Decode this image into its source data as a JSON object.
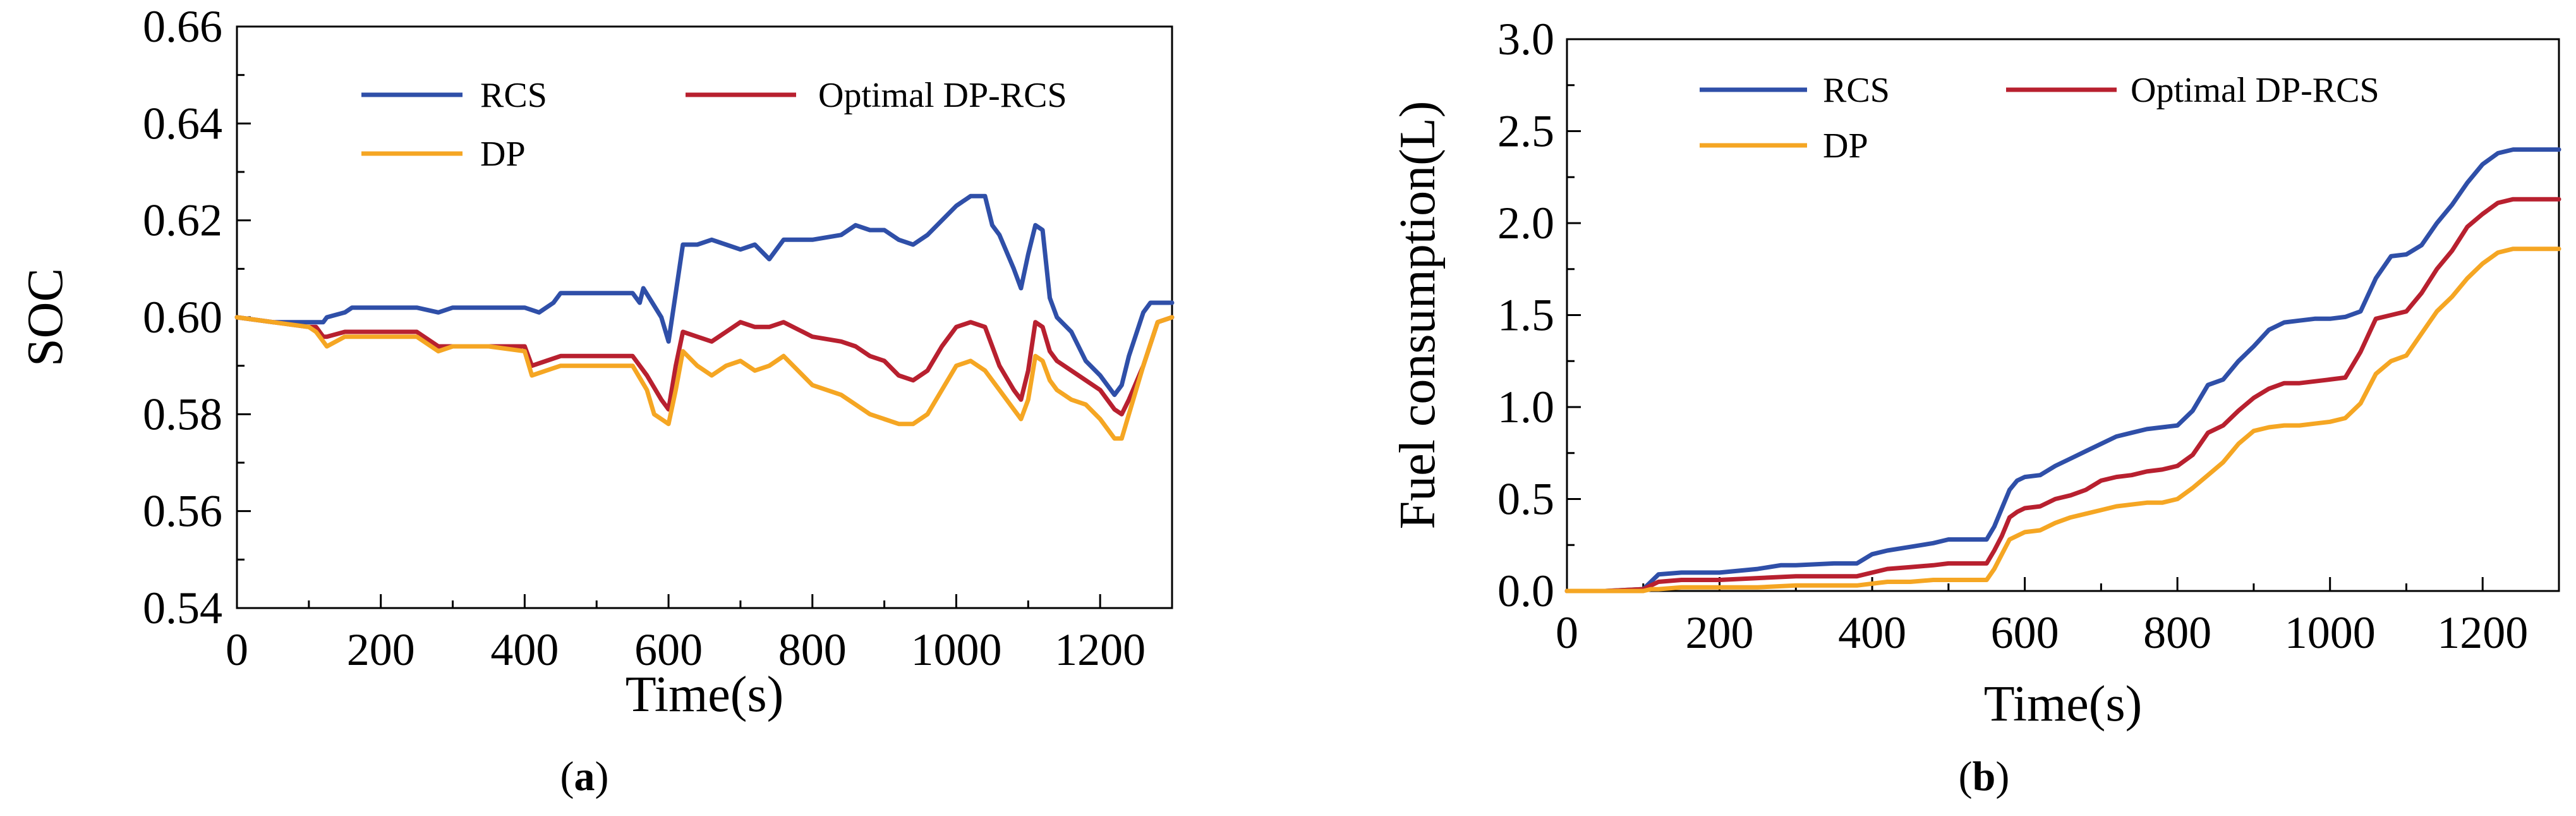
{
  "chart_data": [
    {
      "type": "line",
      "panel": "a",
      "xlabel": "Time(s)",
      "ylabel": "SOC",
      "xlim": [
        0,
        1300
      ],
      "ylim": [
        0.54,
        0.66
      ],
      "xticks": [
        0,
        200,
        400,
        600,
        800,
        1000,
        1200
      ],
      "xtick_labels": [
        "0",
        "200",
        "400",
        "600",
        "800",
        "1000",
        "1200"
      ],
      "yticks": [
        0.54,
        0.56,
        0.58,
        0.6,
        0.62,
        0.64,
        0.66
      ],
      "ytick_labels": [
        "0.54",
        "0.56",
        "0.58",
        "0.60",
        "0.62",
        "0.64",
        "0.66"
      ],
      "grid": false,
      "legend_position": "top",
      "series": [
        {
          "name": "RCS",
          "color": "#2f4fa8",
          "x": [
            0,
            50,
            100,
            120,
            125,
            150,
            160,
            200,
            250,
            280,
            300,
            350,
            400,
            420,
            440,
            450,
            500,
            550,
            560,
            565,
            590,
            600,
            610,
            620,
            640,
            660,
            680,
            700,
            720,
            740,
            760,
            800,
            840,
            860,
            880,
            900,
            920,
            940,
            960,
            980,
            1000,
            1020,
            1040,
            1050,
            1060,
            1080,
            1090,
            1100,
            1110,
            1120,
            1130,
            1140,
            1160,
            1180,
            1200,
            1220,
            1230,
            1240,
            1260,
            1270,
            1280,
            1300
          ],
          "y": [
            0.6,
            0.599,
            0.599,
            0.599,
            0.6,
            0.601,
            0.602,
            0.602,
            0.602,
            0.601,
            0.602,
            0.602,
            0.602,
            0.601,
            0.603,
            0.605,
            0.605,
            0.605,
            0.603,
            0.606,
            0.6,
            0.595,
            0.605,
            0.615,
            0.615,
            0.616,
            0.615,
            0.614,
            0.615,
            0.612,
            0.616,
            0.616,
            0.617,
            0.619,
            0.618,
            0.618,
            0.616,
            0.615,
            0.617,
            0.62,
            0.623,
            0.625,
            0.625,
            0.619,
            0.617,
            0.61,
            0.606,
            0.613,
            0.619,
            0.618,
            0.604,
            0.6,
            0.597,
            0.591,
            0.588,
            0.584,
            0.586,
            0.592,
            0.601,
            0.603,
            0.603,
            0.603
          ]
        },
        {
          "name": "Optimal DP-RCS",
          "color": "#b8202f",
          "x": [
            0,
            50,
            100,
            110,
            120,
            125,
            150,
            200,
            250,
            280,
            300,
            350,
            400,
            410,
            430,
            450,
            500,
            550,
            570,
            590,
            600,
            610,
            620,
            640,
            660,
            680,
            700,
            720,
            740,
            760,
            800,
            840,
            860,
            880,
            900,
            920,
            940,
            960,
            980,
            1000,
            1020,
            1040,
            1050,
            1060,
            1080,
            1090,
            1100,
            1110,
            1120,
            1130,
            1140,
            1160,
            1180,
            1200,
            1220,
            1230,
            1240,
            1260,
            1280,
            1300
          ],
          "y": [
            0.6,
            0.599,
            0.598,
            0.598,
            0.596,
            0.596,
            0.597,
            0.597,
            0.597,
            0.594,
            0.594,
            0.594,
            0.594,
            0.59,
            0.591,
            0.592,
            0.592,
            0.592,
            0.588,
            0.583,
            0.581,
            0.59,
            0.597,
            0.596,
            0.595,
            0.597,
            0.599,
            0.598,
            0.598,
            0.599,
            0.596,
            0.595,
            0.594,
            0.592,
            0.591,
            0.588,
            0.587,
            0.589,
            0.594,
            0.598,
            0.599,
            0.598,
            0.594,
            0.59,
            0.585,
            0.583,
            0.589,
            0.599,
            0.598,
            0.593,
            0.591,
            0.589,
            0.587,
            0.585,
            0.581,
            0.58,
            0.583,
            0.59,
            0.599,
            0.6
          ]
        },
        {
          "name": "DP",
          "color": "#f5a623",
          "x": [
            0,
            50,
            100,
            110,
            120,
            125,
            150,
            200,
            250,
            280,
            300,
            350,
            400,
            410,
            430,
            450,
            500,
            550,
            570,
            580,
            590,
            600,
            610,
            620,
            640,
            660,
            680,
            700,
            720,
            740,
            760,
            800,
            840,
            860,
            880,
            900,
            920,
            940,
            960,
            980,
            1000,
            1020,
            1040,
            1050,
            1060,
            1080,
            1090,
            1100,
            1110,
            1120,
            1130,
            1140,
            1160,
            1180,
            1200,
            1220,
            1230,
            1240,
            1260,
            1280,
            1300
          ],
          "y": [
            0.6,
            0.599,
            0.598,
            0.597,
            0.595,
            0.594,
            0.596,
            0.596,
            0.596,
            0.593,
            0.594,
            0.594,
            0.593,
            0.588,
            0.589,
            0.59,
            0.59,
            0.59,
            0.585,
            0.58,
            0.579,
            0.578,
            0.585,
            0.593,
            0.59,
            0.588,
            0.59,
            0.591,
            0.589,
            0.59,
            0.592,
            0.586,
            0.584,
            0.582,
            0.58,
            0.579,
            0.578,
            0.578,
            0.58,
            0.585,
            0.59,
            0.591,
            0.589,
            0.587,
            0.585,
            0.581,
            0.579,
            0.583,
            0.592,
            0.591,
            0.587,
            0.585,
            0.583,
            0.582,
            0.579,
            0.575,
            0.575,
            0.58,
            0.59,
            0.599,
            0.6
          ]
        }
      ],
      "caption_parts": [
        "(",
        "a",
        ")"
      ]
    },
    {
      "type": "line",
      "panel": "b",
      "xlabel": "Time(s)",
      "ylabel": "Fuel consumption(L)",
      "xlim": [
        0,
        1300
      ],
      "ylim": [
        0.0,
        3.0
      ],
      "xticks": [
        0,
        200,
        400,
        600,
        800,
        1000,
        1200
      ],
      "xtick_labels": [
        "0",
        "200",
        "400",
        "600",
        "800",
        "1000",
        "1200"
      ],
      "yticks": [
        0.0,
        0.5,
        1.0,
        1.5,
        2.0,
        2.5,
        3.0
      ],
      "ytick_labels": [
        "0.0",
        "0.5",
        "1.0",
        "1.5",
        "2.0",
        "2.5",
        "3.0"
      ],
      "grid": false,
      "legend_position": "top",
      "series": [
        {
          "name": "RCS",
          "color": "#2f4fa8",
          "x": [
            0,
            50,
            100,
            110,
            120,
            150,
            200,
            250,
            280,
            300,
            350,
            380,
            400,
            420,
            450,
            480,
            500,
            530,
            550,
            560,
            570,
            580,
            590,
            600,
            620,
            640,
            660,
            680,
            700,
            720,
            740,
            760,
            780,
            800,
            820,
            840,
            860,
            880,
            900,
            920,
            940,
            960,
            980,
            1000,
            1020,
            1040,
            1060,
            1080,
            1100,
            1120,
            1140,
            1160,
            1180,
            1200,
            1220,
            1240,
            1260,
            1280,
            1300
          ],
          "y": [
            0.0,
            0.0,
            0.01,
            0.05,
            0.09,
            0.1,
            0.1,
            0.12,
            0.14,
            0.14,
            0.15,
            0.15,
            0.2,
            0.22,
            0.24,
            0.26,
            0.28,
            0.28,
            0.28,
            0.35,
            0.45,
            0.55,
            0.6,
            0.62,
            0.63,
            0.68,
            0.72,
            0.76,
            0.8,
            0.84,
            0.86,
            0.88,
            0.89,
            0.9,
            0.98,
            1.12,
            1.15,
            1.25,
            1.33,
            1.42,
            1.46,
            1.47,
            1.48,
            1.48,
            1.49,
            1.52,
            1.7,
            1.82,
            1.83,
            1.88,
            2.0,
            2.1,
            2.22,
            2.32,
            2.38,
            2.4,
            2.4,
            2.4,
            2.4
          ]
        },
        {
          "name": "Optimal DP-RCS",
          "color": "#b8202f",
          "x": [
            0,
            50,
            100,
            110,
            120,
            150,
            200,
            250,
            300,
            350,
            380,
            400,
            420,
            450,
            480,
            500,
            530,
            550,
            560,
            570,
            580,
            590,
            600,
            620,
            640,
            660,
            680,
            700,
            720,
            740,
            760,
            780,
            800,
            820,
            840,
            860,
            880,
            900,
            920,
            940,
            960,
            980,
            1000,
            1020,
            1040,
            1060,
            1080,
            1100,
            1120,
            1140,
            1160,
            1180,
            1200,
            1220,
            1240,
            1260,
            1280,
            1300
          ],
          "y": [
            0.0,
            0.0,
            0.01,
            0.03,
            0.05,
            0.06,
            0.06,
            0.07,
            0.08,
            0.08,
            0.08,
            0.1,
            0.12,
            0.13,
            0.14,
            0.15,
            0.15,
            0.15,
            0.22,
            0.3,
            0.4,
            0.43,
            0.45,
            0.46,
            0.5,
            0.52,
            0.55,
            0.6,
            0.62,
            0.63,
            0.65,
            0.66,
            0.68,
            0.74,
            0.86,
            0.9,
            0.98,
            1.05,
            1.1,
            1.13,
            1.13,
            1.14,
            1.15,
            1.16,
            1.3,
            1.48,
            1.5,
            1.52,
            1.62,
            1.75,
            1.85,
            1.98,
            2.05,
            2.11,
            2.13,
            2.13,
            2.13,
            2.13
          ]
        },
        {
          "name": "DP",
          "color": "#f5a623",
          "x": [
            0,
            50,
            100,
            110,
            120,
            150,
            200,
            250,
            300,
            350,
            380,
            400,
            420,
            450,
            480,
            500,
            530,
            550,
            560,
            570,
            580,
            590,
            600,
            620,
            640,
            660,
            680,
            700,
            720,
            740,
            760,
            780,
            800,
            820,
            840,
            860,
            880,
            900,
            920,
            940,
            960,
            980,
            1000,
            1020,
            1040,
            1060,
            1080,
            1100,
            1120,
            1140,
            1160,
            1180,
            1200,
            1220,
            1240,
            1260,
            1280,
            1300
          ],
          "y": [
            0.0,
            0.0,
            0.0,
            0.01,
            0.01,
            0.02,
            0.02,
            0.02,
            0.03,
            0.03,
            0.03,
            0.04,
            0.05,
            0.05,
            0.06,
            0.06,
            0.06,
            0.06,
            0.12,
            0.2,
            0.28,
            0.3,
            0.32,
            0.33,
            0.37,
            0.4,
            0.42,
            0.44,
            0.46,
            0.47,
            0.48,
            0.48,
            0.5,
            0.56,
            0.63,
            0.7,
            0.8,
            0.87,
            0.89,
            0.9,
            0.9,
            0.91,
            0.92,
            0.94,
            1.02,
            1.18,
            1.25,
            1.28,
            1.4,
            1.52,
            1.6,
            1.7,
            1.78,
            1.84,
            1.86,
            1.86,
            1.86,
            1.86
          ]
        }
      ],
      "caption_parts": [
        "(",
        "b",
        ")"
      ]
    }
  ]
}
